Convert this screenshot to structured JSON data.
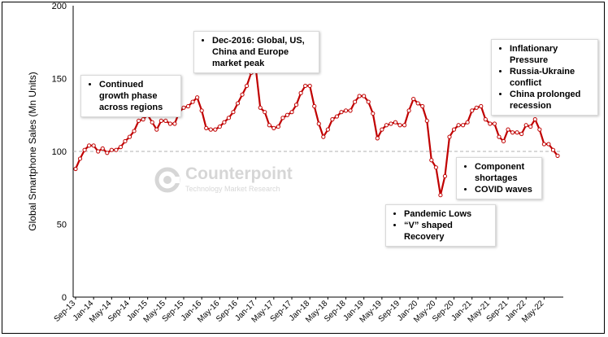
{
  "chart_data": {
    "type": "line",
    "title": "",
    "xlabel": "",
    "ylabel": "Global Smartphone Sales (Mn Units)",
    "ylim": [
      0,
      200
    ],
    "yticks": [
      0,
      50,
      100,
      150,
      200
    ],
    "reference_line": 100,
    "grid": false,
    "x_tick_labels": [
      "Sep-13",
      "Jan-14",
      "May-14",
      "Sep-14",
      "Jan-15",
      "May-15",
      "Sep-15",
      "Jan-16",
      "May-16",
      "Sep-16",
      "Jan-17",
      "May-17",
      "Sep-17",
      "Jan-18",
      "May-18",
      "Sep-18",
      "Jan-19",
      "May-19",
      "Sep-19",
      "Jan-20",
      "May-20",
      "Sep-20",
      "Jan-21",
      "May-21",
      "Sep-21",
      "Jan-22",
      "May-22"
    ],
    "start_month": "Sep-13",
    "series": [
      {
        "name": "",
        "color": "#c00000",
        "values": [
          88,
          95,
          101,
          104,
          104,
          100,
          102,
          99,
          101,
          101,
          103,
          107,
          110,
          114,
          121,
          122,
          125,
          120,
          115,
          121,
          121,
          119,
          119,
          127,
          130,
          131,
          134,
          137,
          128,
          116,
          115,
          115,
          117,
          120,
          123,
          127,
          133,
          139,
          145,
          154,
          157,
          130,
          127,
          118,
          116,
          117,
          123,
          125,
          127,
          132,
          140,
          145,
          145,
          131,
          119,
          110,
          115,
          122,
          124,
          127,
          128,
          128,
          134,
          138,
          138,
          134,
          126,
          109,
          115,
          118,
          119,
          120,
          118,
          118,
          128,
          136,
          133,
          131,
          121,
          94,
          89,
          70,
          83,
          110,
          115,
          118,
          118,
          120,
          128,
          130,
          131,
          122,
          119,
          119,
          110,
          107,
          115,
          113,
          113,
          112,
          118,
          117,
          122,
          115,
          105,
          105,
          101,
          97
        ]
      }
    ],
    "annotations": [
      {
        "items": [
          "Continued growth phase across regions"
        ]
      },
      {
        "items": [
          "Dec-2016: Global, US, China and Europe market peak"
        ]
      },
      {
        "items": [
          "Inflationary Pressure",
          "Russia-Ukraine conflict",
          "China prolonged recession"
        ]
      },
      {
        "items": [
          "Component shortages",
          "COVID waves"
        ]
      },
      {
        "items": [
          "Pandemic Lows",
          "“V” shaped Recovery"
        ]
      }
    ]
  },
  "watermark": {
    "name": "Counterpoint",
    "subtitle": "Technology Market Research"
  }
}
